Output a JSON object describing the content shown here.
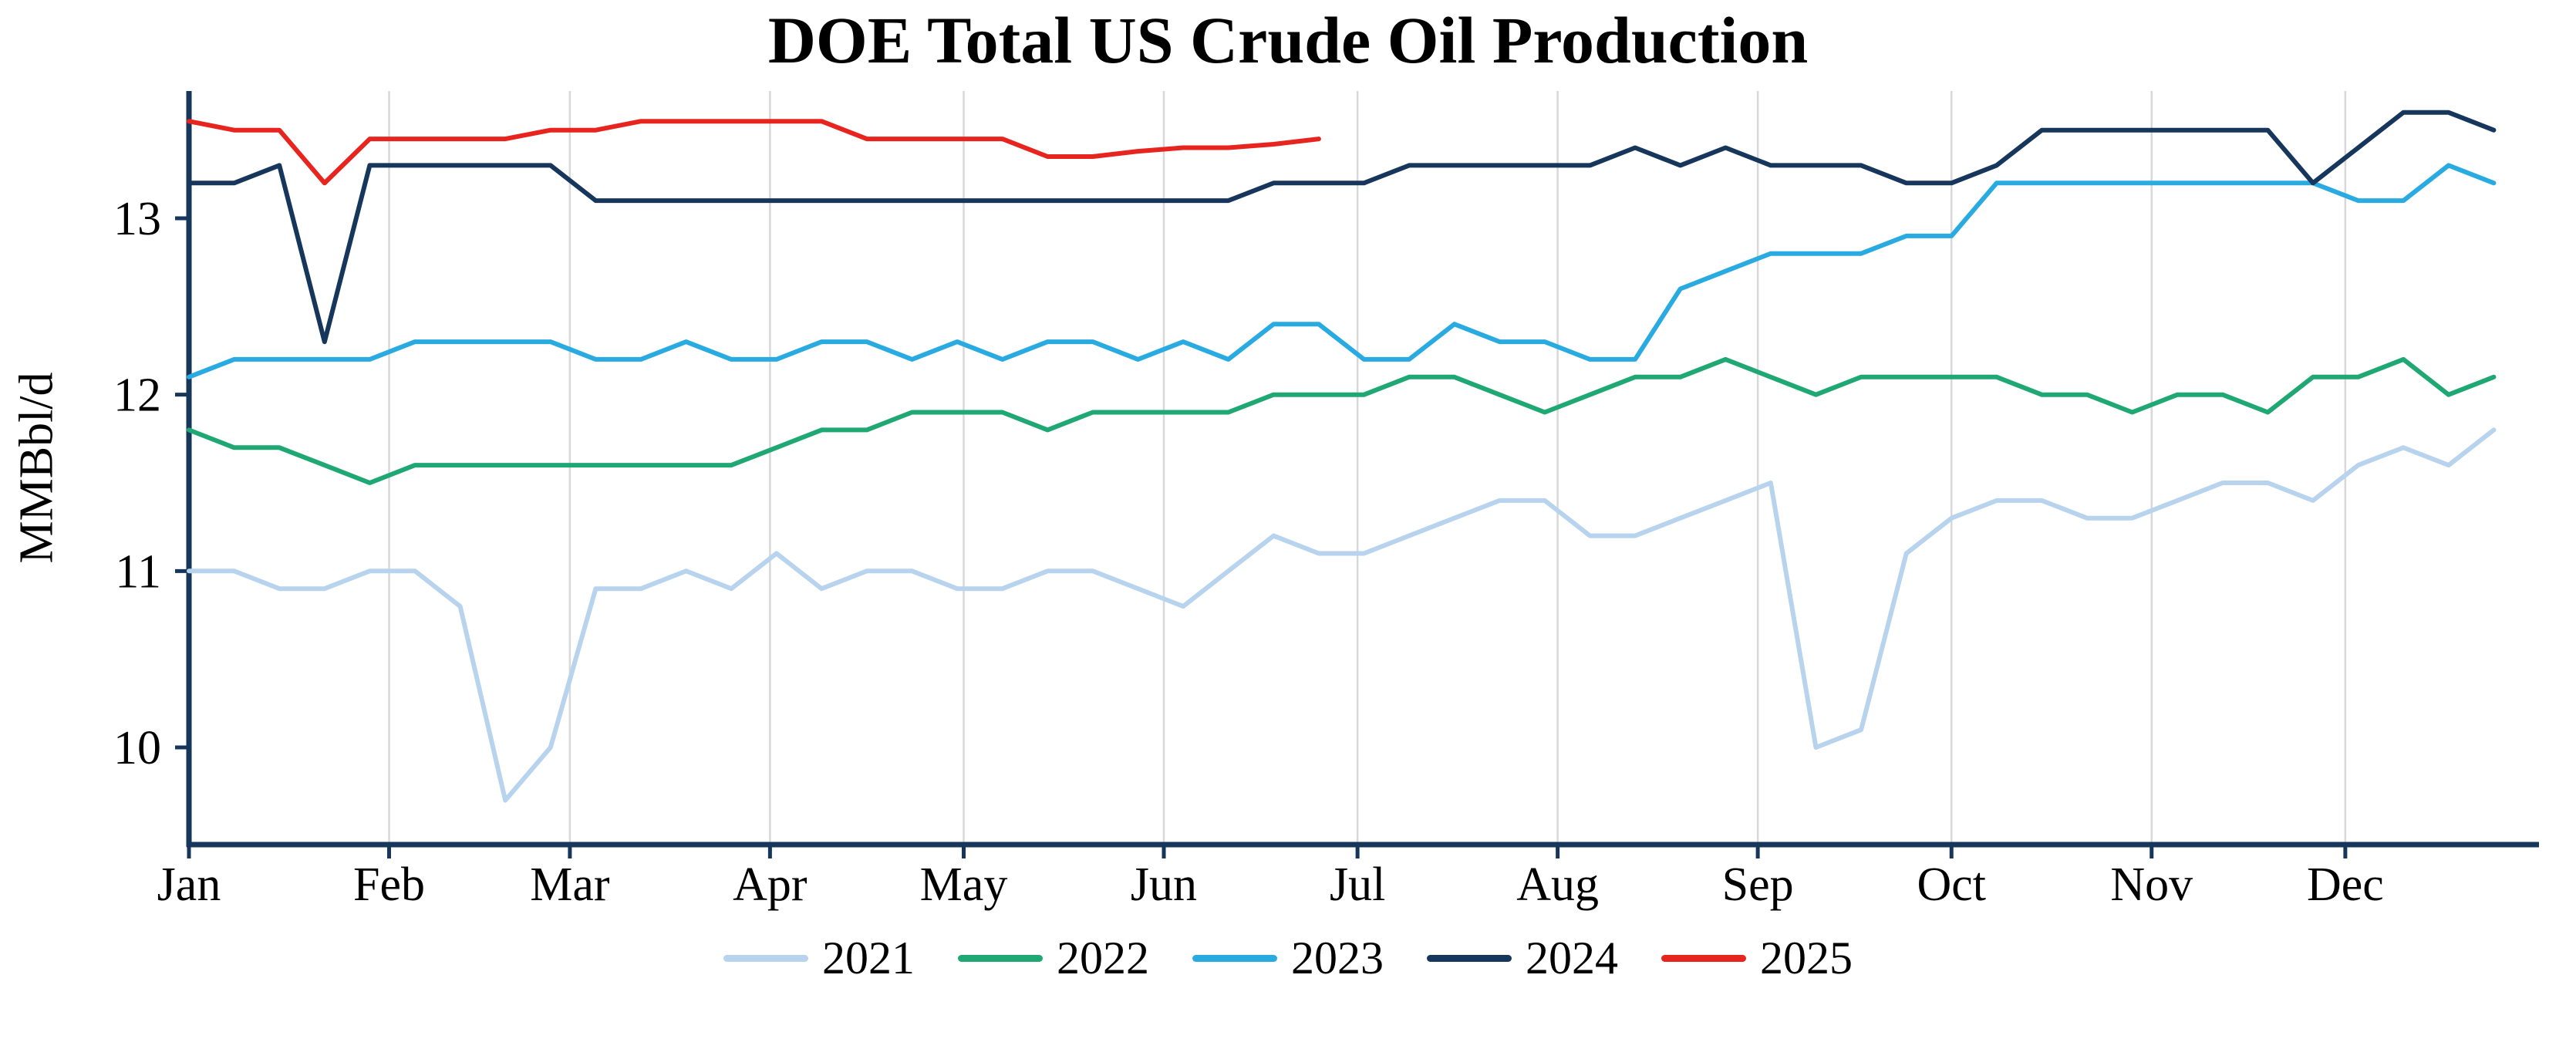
{
  "chart_data": {
    "type": "line",
    "title": "DOE Total US Crude Oil Production",
    "xlabel": "",
    "ylabel": "MMBbl/d",
    "frequency": "weekly",
    "x_tick_labels": [
      "Jan",
      "Feb",
      "Mar",
      "Apr",
      "May",
      "Jun",
      "Jul",
      "Aug",
      "Sep",
      "Oct",
      "Nov",
      "Dec"
    ],
    "y_ticks": [
      10,
      11,
      12,
      13
    ],
    "ylim": [
      9.45,
      13.72
    ],
    "grid": "vertical-month-gridlines-only",
    "legend_position": "bottom-center",
    "axis_color": "#16365c",
    "gridline_color": "#d8d8d8",
    "series": [
      {
        "name": "2021",
        "color": "#b7d3ed",
        "values": [
          11.0,
          11.0,
          10.9,
          10.9,
          11.0,
          11.0,
          10.8,
          9.7,
          10.0,
          10.9,
          10.9,
          11.0,
          10.9,
          11.1,
          10.9,
          11.0,
          11.0,
          10.9,
          10.9,
          11.0,
          11.0,
          10.9,
          10.8,
          11.0,
          11.2,
          11.1,
          11.1,
          11.2,
          11.3,
          11.4,
          11.4,
          11.2,
          11.2,
          11.3,
          11.4,
          11.5,
          10.0,
          10.1,
          11.1,
          11.3,
          11.4,
          11.4,
          11.3,
          11.3,
          11.4,
          11.5,
          11.5,
          11.4,
          11.6,
          11.7,
          11.6,
          11.8
        ]
      },
      {
        "name": "2022",
        "color": "#1fa874",
        "values": [
          11.8,
          11.7,
          11.7,
          11.6,
          11.5,
          11.6,
          11.6,
          11.6,
          11.6,
          11.6,
          11.6,
          11.6,
          11.6,
          11.7,
          11.8,
          11.8,
          11.9,
          11.9,
          11.9,
          11.8,
          11.9,
          11.9,
          11.9,
          11.9,
          12.0,
          12.0,
          12.0,
          12.1,
          12.1,
          12.0,
          11.9,
          12.0,
          12.1,
          12.1,
          12.2,
          12.1,
          12.0,
          12.1,
          12.1,
          12.1,
          12.1,
          12.0,
          12.0,
          11.9,
          12.0,
          12.0,
          11.9,
          12.1,
          12.1,
          12.2,
          12.0,
          12.1
        ]
      },
      {
        "name": "2023",
        "color": "#29abe2",
        "values": [
          12.1,
          12.2,
          12.2,
          12.2,
          12.2,
          12.3,
          12.3,
          12.3,
          12.3,
          12.2,
          12.2,
          12.3,
          12.2,
          12.2,
          12.3,
          12.3,
          12.2,
          12.3,
          12.2,
          12.3,
          12.3,
          12.2,
          12.3,
          12.2,
          12.4,
          12.4,
          12.2,
          12.2,
          12.4,
          12.3,
          12.3,
          12.2,
          12.2,
          12.6,
          12.7,
          12.8,
          12.8,
          12.8,
          12.9,
          12.9,
          13.2,
          13.2,
          13.2,
          13.2,
          13.2,
          13.2,
          13.2,
          13.2,
          13.1,
          13.1,
          13.3,
          13.2
        ]
      },
      {
        "name": "2024",
        "color": "#16365c",
        "values": [
          13.2,
          13.2,
          13.3,
          12.3,
          13.3,
          13.3,
          13.3,
          13.3,
          13.3,
          13.1,
          13.1,
          13.1,
          13.1,
          13.1,
          13.1,
          13.1,
          13.1,
          13.1,
          13.1,
          13.1,
          13.1,
          13.1,
          13.1,
          13.1,
          13.2,
          13.2,
          13.2,
          13.3,
          13.3,
          13.3,
          13.3,
          13.3,
          13.4,
          13.3,
          13.4,
          13.3,
          13.3,
          13.3,
          13.2,
          13.2,
          13.3,
          13.5,
          13.5,
          13.5,
          13.5,
          13.5,
          13.5,
          13.2,
          13.4,
          13.6,
          13.6,
          13.5
        ]
      },
      {
        "name": "2025",
        "color": "#e8241f",
        "values": [
          13.55,
          13.5,
          13.5,
          13.2,
          13.45,
          13.45,
          13.45,
          13.45,
          13.5,
          13.5,
          13.55,
          13.55,
          13.55,
          13.55,
          13.55,
          13.45,
          13.45,
          13.45,
          13.45,
          13.35,
          13.35,
          13.38,
          13.4,
          13.4,
          13.42,
          13.45
        ]
      }
    ]
  }
}
